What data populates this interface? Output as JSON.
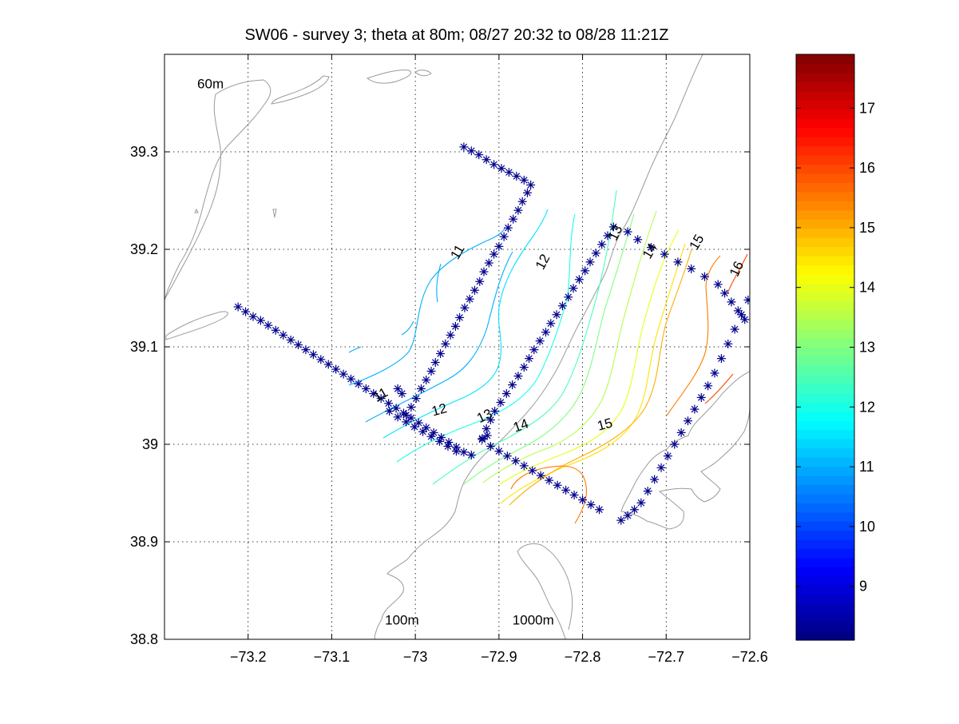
{
  "chart_data": {
    "type": "contour",
    "title": "SW06 - survey 3; theta at 80m; 08/27 20:32 to 08/28 11:21Z",
    "xlabel": "",
    "ylabel": "",
    "xlim": [
      -73.3,
      -72.6
    ],
    "ylim": [
      38.8,
      39.4
    ],
    "xticks": [
      -73.2,
      -73.1,
      -73.0,
      -72.9,
      -72.8,
      -72.7,
      -72.6
    ],
    "yticks": [
      38.8,
      38.9,
      39.0,
      39.1,
      39.2,
      39.3
    ],
    "xtick_labels": [
      "-73.2",
      "-73.1",
      "-73",
      "-72.9",
      "-72.8",
      "-72.7",
      "-72.6"
    ],
    "ytick_labels": [
      "38.8",
      "38.9",
      "39",
      "39.1",
      "39.2",
      "39.3"
    ],
    "grid": true,
    "colormap": "jet",
    "clim": [
      8.1,
      17.9
    ],
    "colorbar_ticks": [
      9,
      10,
      11,
      12,
      13,
      14,
      15,
      16,
      17
    ],
    "colorbar_tick_labels": [
      "9",
      "10",
      "11",
      "12",
      "13",
      "14",
      "15",
      "16",
      "17"
    ],
    "marker_color": "#00008b",
    "bathymetry_color": "#9a9a9a",
    "bathymetry_labels": [
      {
        "text": "60m",
        "lon": -73.245,
        "lat": 39.365
      },
      {
        "text": "100m",
        "lon": -73.016,
        "lat": 38.815
      },
      {
        "text": "1000m",
        "lon": -72.859,
        "lat": 38.815
      }
    ],
    "contour_labels": [
      {
        "text": "11",
        "lon": -72.945,
        "lat": 39.195,
        "level": 11
      },
      {
        "text": "12",
        "lon": -72.843,
        "lat": 39.185,
        "level": 12
      },
      {
        "text": "13",
        "lon": -72.756,
        "lat": 39.215,
        "level": 13
      },
      {
        "text": "14",
        "lon": -72.715,
        "lat": 39.196,
        "level": 14
      },
      {
        "text": "15",
        "lon": -72.659,
        "lat": 39.205,
        "level": 15
      },
      {
        "text": "16",
        "lon": -72.611,
        "lat": 39.178,
        "level": 16
      },
      {
        "text": "11",
        "lon": -73.039,
        "lat": 39.047,
        "level": 11
      },
      {
        "text": "12",
        "lon": -72.97,
        "lat": 39.031,
        "level": 12
      },
      {
        "text": "13",
        "lon": -72.915,
        "lat": 39.025,
        "level": 13
      },
      {
        "text": "14",
        "lon": -72.872,
        "lat": 39.015,
        "level": 14
      },
      {
        "text": "15",
        "lon": -72.772,
        "lat": 39.016,
        "level": 15
      }
    ],
    "series": [
      {
        "lons": [
          -72.942,
          -72.933,
          -72.924,
          -72.915,
          -72.906,
          -72.897,
          -72.888,
          -72.879,
          -72.87,
          -72.862
        ],
        "lats": [
          39.305,
          39.301,
          39.297,
          39.292,
          39.287,
          39.283,
          39.279,
          39.275,
          39.271,
          39.266
        ]
      },
      {
        "lons": [
          -72.866,
          -72.872,
          -72.877,
          -72.883,
          -72.889,
          -72.894,
          -72.9,
          -72.906,
          -72.912,
          -72.918,
          -72.923,
          -72.929,
          -72.935,
          -72.941,
          -72.947,
          -72.952,
          -72.958,
          -72.964,
          -72.97,
          -72.976,
          -72.981,
          -72.987,
          -72.993,
          -72.999,
          -73.005,
          -73.011,
          -73.016,
          -73.021
        ],
        "lats": [
          39.258,
          39.249,
          39.24,
          39.231,
          39.222,
          39.213,
          39.203,
          39.195,
          39.186,
          39.177,
          39.167,
          39.158,
          39.149,
          39.14,
          39.13,
          39.121,
          39.112,
          39.103,
          39.093,
          39.084,
          39.075,
          39.066,
          39.057,
          39.047,
          39.038,
          39.03,
          39.052,
          39.057
        ]
      },
      {
        "lons": [
          -73.212,
          -73.203,
          -73.194,
          -73.185,
          -73.176,
          -73.167,
          -73.158,
          -73.149,
          -73.14,
          -73.131,
          -73.122,
          -73.113,
          -73.104,
          -73.095,
          -73.086,
          -73.077,
          -73.068,
          -73.059,
          -73.05,
          -73.041,
          -73.032,
          -73.023,
          -73.014,
          -73.005,
          -72.996,
          -72.987,
          -72.978,
          -72.969,
          -72.96,
          -72.951,
          -72.942,
          -72.933
        ],
        "lats": [
          39.141,
          39.136,
          39.131,
          39.127,
          39.122,
          39.117,
          39.112,
          39.107,
          39.102,
          39.097,
          39.092,
          39.087,
          39.082,
          39.077,
          39.072,
          39.067,
          39.062,
          39.057,
          39.052,
          39.047,
          39.042,
          39.037,
          39.032,
          39.027,
          39.022,
          39.017,
          39.012,
          39.007,
          39.002,
          38.997,
          38.992,
          38.989
        ]
      },
      {
        "lons": [
          -73.031,
          -73.021,
          -73.011,
          -73.001,
          -72.991,
          -72.981,
          -72.971,
          -72.961,
          -72.951
        ],
        "lats": [
          39.034,
          39.028,
          39.023,
          39.018,
          39.013,
          39.008,
          39.003,
          38.998,
          38.993
        ]
      },
      {
        "lons": [
          -72.914,
          -72.92,
          -72.91,
          -72.9,
          -72.89,
          -72.88,
          -72.87,
          -72.86,
          -72.85,
          -72.84,
          -72.83,
          -72.82,
          -72.81,
          -72.8,
          -72.79,
          -72.78
        ],
        "lats": [
          39.009,
          39.005,
          38.998,
          38.993,
          38.988,
          38.983,
          38.978,
          38.973,
          38.968,
          38.963,
          38.958,
          38.953,
          38.948,
          38.943,
          38.938,
          38.933
        ]
      },
      {
        "lons": [
          -72.92,
          -72.915,
          -72.91,
          -72.905,
          -72.898,
          -72.891,
          -72.884,
          -72.877,
          -72.87,
          -72.864,
          -72.858,
          -72.851,
          -72.844,
          -72.838,
          -72.831,
          -72.824,
          -72.817,
          -72.811,
          -72.804,
          -72.797,
          -72.791,
          -72.784,
          -72.777,
          -72.77,
          -72.763
        ],
        "lats": [
          39.006,
          39.016,
          39.025,
          39.034,
          39.043,
          39.052,
          39.061,
          39.07,
          39.079,
          39.088,
          39.097,
          39.106,
          39.115,
          39.124,
          39.133,
          39.142,
          39.151,
          39.16,
          39.169,
          39.178,
          39.187,
          39.196,
          39.205,
          39.214,
          39.223
        ]
      },
      {
        "lons": [
          -72.746,
          -72.734,
          -72.718,
          -72.702,
          -72.686,
          -72.67,
          -72.654,
          -72.638,
          -72.63,
          -72.622,
          -72.614,
          -72.606
        ],
        "lats": [
          39.218,
          39.21,
          39.202,
          39.195,
          39.187,
          39.18,
          39.172,
          39.164,
          39.155,
          39.146,
          39.137,
          39.128
        ]
      },
      {
        "lons": [
          -72.602,
          -72.61,
          -72.618,
          -72.626,
          -72.634,
          -72.642,
          -72.65,
          -72.658,
          -72.666,
          -72.674,
          -72.682,
          -72.69,
          -72.698,
          -72.706,
          -72.714,
          -72.722,
          -72.73,
          -72.738,
          -72.746,
          -72.754
        ],
        "lats": [
          39.148,
          39.133,
          39.118,
          39.103,
          39.088,
          39.073,
          39.06,
          39.048,
          39.036,
          39.024,
          39.012,
          39.0,
          38.988,
          38.976,
          38.964,
          38.952,
          38.94,
          38.933,
          38.927,
          38.922
        ]
      }
    ]
  }
}
